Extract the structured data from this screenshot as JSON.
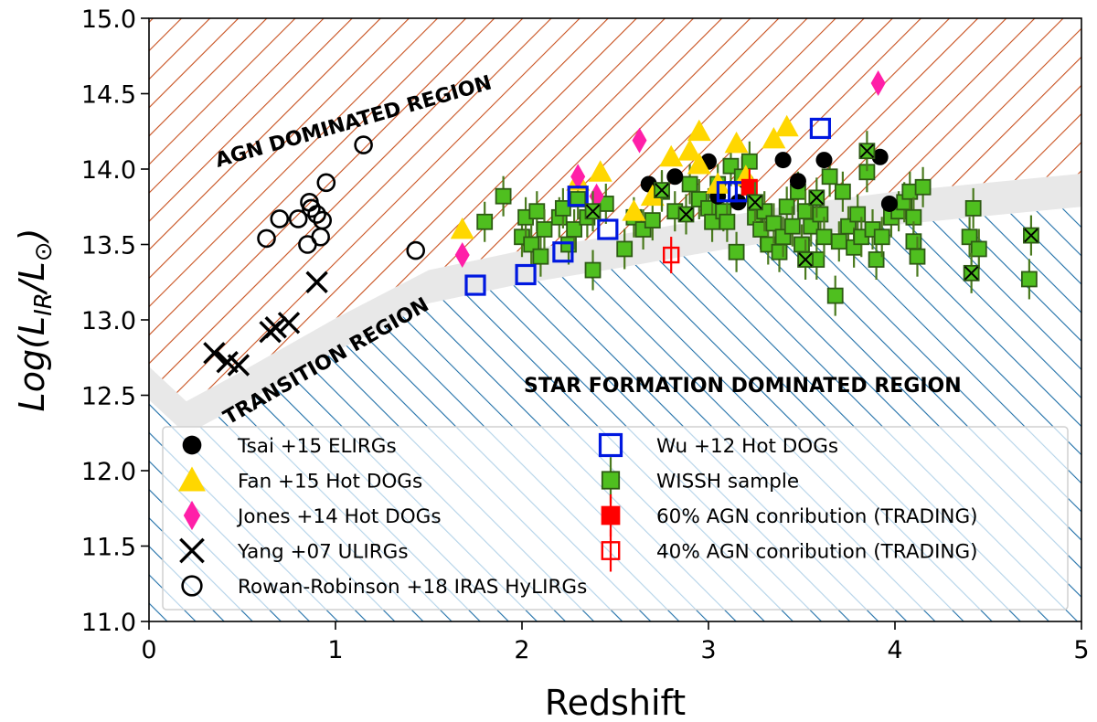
{
  "chart_data": {
    "type": "scatter",
    "xlabel": "Redshift",
    "ylabel": "Log(L_IR/L_⊙)",
    "ylabel_parts": {
      "pre": "Log(",
      "l1": "L",
      "sub1": "IR",
      "slash": "/",
      "l2": "L",
      "sub2": "⊙",
      "post": ")"
    },
    "xlim": [
      0,
      5
    ],
    "ylim": [
      11.0,
      15.0
    ],
    "x_ticks": [
      "0",
      "1",
      "2",
      "3",
      "4",
      "5"
    ],
    "y_ticks": [
      "11.0",
      "11.5",
      "12.0",
      "12.5",
      "13.0",
      "13.5",
      "14.0",
      "14.5",
      "15.0"
    ],
    "regions": {
      "agn_label": "AGN DOMINATED REGION",
      "transition_label": "TRANSITION REGION",
      "sf_label": "STAR FORMATION DOMINATED REGION",
      "agn_color": "#c8501e",
      "sf_color": "#1f6fa8",
      "transition_color": "#e8e8e8",
      "transition_band": [
        [
          0,
          12.58
        ],
        [
          0.2,
          12.35
        ],
        [
          0.5,
          12.55
        ],
        [
          1.0,
          12.9
        ],
        [
          1.5,
          13.22
        ],
        [
          2.0,
          13.35
        ],
        [
          2.5,
          13.45
        ],
        [
          3.0,
          13.56
        ],
        [
          3.5,
          13.66
        ],
        [
          4.0,
          13.74
        ],
        [
          4.5,
          13.8
        ],
        [
          5.0,
          13.86
        ]
      ],
      "transition_half_width": 0.11
    },
    "series": [
      {
        "name": "Tsai +15 ELIRGs",
        "marker": "circle-filled",
        "color": "#000000",
        "points": [
          [
            2.68,
            13.9
          ],
          [
            2.82,
            13.95
          ],
          [
            3.0,
            14.05
          ],
          [
            3.2,
            13.92
          ],
          [
            3.4,
            14.06
          ],
          [
            3.48,
            13.92
          ],
          [
            3.62,
            14.06
          ],
          [
            3.92,
            14.08
          ],
          [
            3.97,
            13.77
          ],
          [
            3.16,
            13.78
          ],
          [
            3.05,
            13.82
          ]
        ]
      },
      {
        "name": "Fan +15 Hot DOGs",
        "marker": "triangle",
        "color": "#ffd700",
        "points": [
          [
            1.68,
            13.6
          ],
          [
            2.3,
            13.92
          ],
          [
            2.42,
            13.98
          ],
          [
            2.6,
            13.72
          ],
          [
            2.8,
            14.08
          ],
          [
            2.9,
            14.12
          ],
          [
            2.95,
            14.03
          ],
          [
            2.95,
            14.25
          ],
          [
            3.05,
            13.9
          ],
          [
            3.15,
            14.17
          ],
          [
            3.2,
            13.95
          ],
          [
            3.35,
            14.2
          ],
          [
            3.42,
            14.28
          ],
          [
            2.7,
            13.82
          ]
        ]
      },
      {
        "name": "Jones +14 Hot DOGs",
        "marker": "diamond",
        "color": "#ff1fa8",
        "points": [
          [
            1.68,
            13.43
          ],
          [
            2.3,
            13.95
          ],
          [
            2.4,
            13.82
          ],
          [
            2.63,
            14.19
          ],
          [
            3.91,
            14.57
          ]
        ]
      },
      {
        "name": "Yang +07 ULIRGs",
        "marker": "x",
        "color": "#000000",
        "points": [
          [
            0.35,
            12.78
          ],
          [
            0.42,
            12.72
          ],
          [
            0.48,
            12.7
          ],
          [
            0.65,
            12.92
          ],
          [
            0.68,
            12.95
          ],
          [
            0.75,
            12.98
          ],
          [
            0.9,
            13.25
          ]
        ]
      },
      {
        "name": "Rowan-Robinson +18 IRAS HyLIRGs",
        "marker": "circle-open",
        "color": "#000000",
        "points": [
          [
            0.63,
            13.54
          ],
          [
            0.7,
            13.67
          ],
          [
            0.8,
            13.67
          ],
          [
            0.85,
            13.5
          ],
          [
            0.86,
            13.78
          ],
          [
            0.87,
            13.74
          ],
          [
            0.9,
            13.7
          ],
          [
            0.92,
            13.55
          ],
          [
            0.93,
            13.66
          ],
          [
            0.95,
            13.91
          ],
          [
            1.15,
            14.16
          ],
          [
            1.43,
            13.46
          ]
        ]
      },
      {
        "name": "Wu +12 Hot DOGs",
        "marker": "square-open",
        "color": "#0018e0",
        "points": [
          [
            1.75,
            13.23
          ],
          [
            2.02,
            13.3
          ],
          [
            2.22,
            13.45
          ],
          [
            2.3,
            13.82
          ],
          [
            2.46,
            13.6
          ],
          [
            3.1,
            13.85
          ],
          [
            3.16,
            13.85
          ],
          [
            3.6,
            14.27
          ]
        ]
      },
      {
        "name": "WISSH sample",
        "marker": "square-green",
        "color": "#4fbf1f",
        "points": [
          [
            1.8,
            13.65
          ],
          [
            1.9,
            13.82
          ],
          [
            2.0,
            13.55
          ],
          [
            2.02,
            13.68
          ],
          [
            2.05,
            13.5
          ],
          [
            2.08,
            13.72
          ],
          [
            2.1,
            13.42
          ],
          [
            2.12,
            13.6
          ],
          [
            2.2,
            13.68
          ],
          [
            2.22,
            13.74
          ],
          [
            2.25,
            13.5
          ],
          [
            2.28,
            13.6
          ],
          [
            2.3,
            13.8
          ],
          [
            2.35,
            13.68
          ],
          [
            2.38,
            13.33
          ],
          [
            2.45,
            13.77
          ],
          [
            2.55,
            13.47
          ],
          [
            2.6,
            13.68
          ],
          [
            2.65,
            13.6
          ],
          [
            2.7,
            13.66
          ],
          [
            2.75,
            13.85
          ],
          [
            2.82,
            13.72
          ],
          [
            2.9,
            13.9
          ],
          [
            2.95,
            13.8
          ],
          [
            3.0,
            13.74
          ],
          [
            3.02,
            13.65
          ],
          [
            3.05,
            13.9
          ],
          [
            3.08,
            13.72
          ],
          [
            3.1,
            13.65
          ],
          [
            3.12,
            14.02
          ],
          [
            3.15,
            13.45
          ],
          [
            3.18,
            13.95
          ],
          [
            3.22,
            14.05
          ],
          [
            3.25,
            13.68
          ],
          [
            3.28,
            13.6
          ],
          [
            3.3,
            13.72
          ],
          [
            3.32,
            13.5
          ],
          [
            3.35,
            13.64
          ],
          [
            3.38,
            13.45
          ],
          [
            3.4,
            13.55
          ],
          [
            3.42,
            13.75
          ],
          [
            3.45,
            13.62
          ],
          [
            3.48,
            13.85
          ],
          [
            3.5,
            13.5
          ],
          [
            3.52,
            13.72
          ],
          [
            3.55,
            13.62
          ],
          [
            3.58,
            13.4
          ],
          [
            3.6,
            13.7
          ],
          [
            3.62,
            13.55
          ],
          [
            3.65,
            13.95
          ],
          [
            3.68,
            13.16
          ],
          [
            3.7,
            13.52
          ],
          [
            3.72,
            13.85
          ],
          [
            3.75,
            13.62
          ],
          [
            3.78,
            13.48
          ],
          [
            3.8,
            13.7
          ],
          [
            3.82,
            13.55
          ],
          [
            3.85,
            13.98
          ],
          [
            3.88,
            13.6
          ],
          [
            3.9,
            13.4
          ],
          [
            3.93,
            13.55
          ],
          [
            3.98,
            13.68
          ],
          [
            4.02,
            13.72
          ],
          [
            4.05,
            13.78
          ],
          [
            4.08,
            13.85
          ],
          [
            4.1,
            13.68
          ],
          [
            4.1,
            13.52
          ],
          [
            4.12,
            13.42
          ],
          [
            4.15,
            13.88
          ],
          [
            4.4,
            13.55
          ],
          [
            4.42,
            13.74
          ],
          [
            4.45,
            13.47
          ],
          [
            4.72,
            13.27
          ]
        ]
      },
      {
        "name": "60% AGN conribution (TRADING)",
        "marker": "square-red-filled",
        "color": "#ff0000",
        "points": [
          [
            3.22,
            13.88
          ]
        ]
      },
      {
        "name": "40% AGN conribution (TRADING)",
        "marker": "square-red-open",
        "color": "#ff0000",
        "points": [
          [
            2.8,
            13.43
          ]
        ]
      }
    ],
    "crossed_wissh": [
      [
        2.38,
        13.72
      ],
      [
        2.75,
        13.86
      ],
      [
        2.88,
        13.7
      ],
      [
        3.25,
        13.78
      ],
      [
        3.52,
        13.4
      ],
      [
        3.58,
        13.81
      ],
      [
        3.85,
        14.12
      ],
      [
        4.41,
        13.31
      ],
      [
        4.73,
        13.56
      ]
    ],
    "legend_position": "lower-center"
  }
}
